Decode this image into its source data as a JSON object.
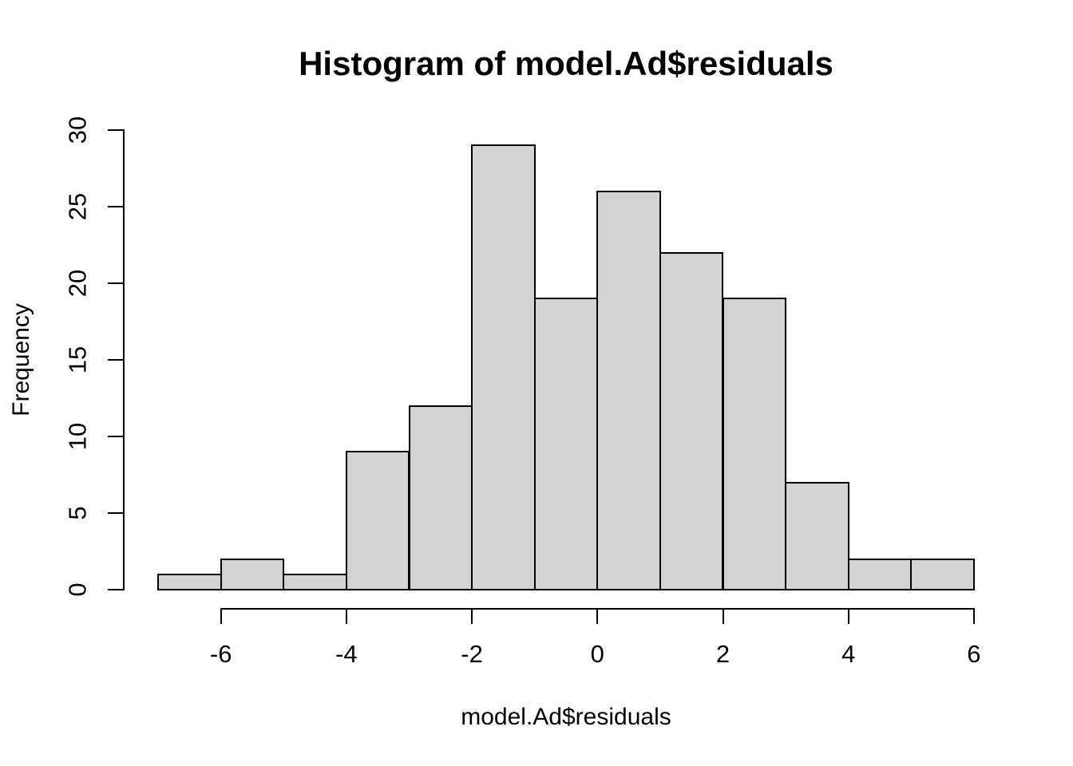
{
  "chart_data": {
    "type": "bar",
    "subtype": "histogram",
    "title": "Histogram of model.Ad$residuals",
    "xlabel": "model.Ad$residuals",
    "ylabel": "Frequency",
    "breaks": [
      -7,
      -6,
      -5,
      -4,
      -3,
      -2,
      -1,
      0,
      1,
      2,
      3,
      4,
      5,
      6
    ],
    "counts": [
      1,
      2,
      1,
      9,
      12,
      29,
      19,
      26,
      22,
      19,
      7,
      2,
      2
    ],
    "x_ticks": [
      "-6",
      "-4",
      "-2",
      "0",
      "2",
      "4",
      "6"
    ],
    "x_tick_values": [
      -6,
      -4,
      -2,
      0,
      2,
      4,
      6
    ],
    "y_ticks": [
      "0",
      "5",
      "10",
      "15",
      "20",
      "25",
      "30"
    ],
    "y_tick_values": [
      0,
      5,
      10,
      15,
      20,
      25,
      30
    ],
    "xlim": [
      -7,
      6
    ],
    "ylim": [
      0,
      30
    ],
    "grid": false,
    "legend": "none",
    "colors": {
      "bar_fill": "#d3d3d3",
      "bar_border": "#000000",
      "axis": "#000000",
      "text": "#000000",
      "background": "#ffffff"
    }
  }
}
